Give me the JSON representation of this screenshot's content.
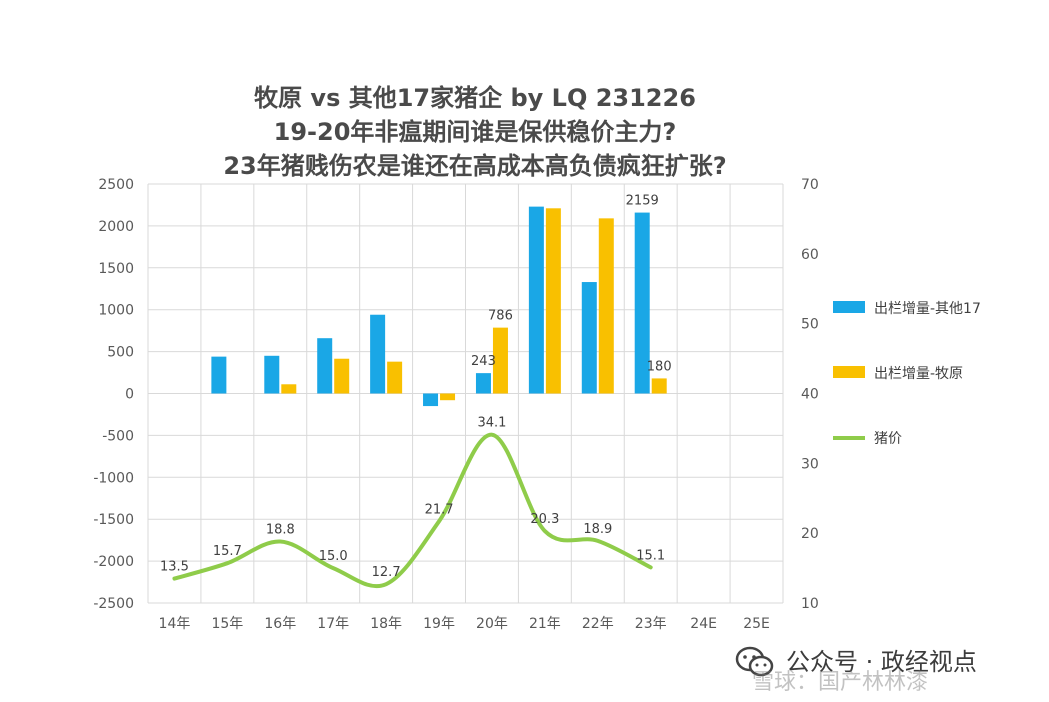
{
  "chart_data": {
    "type": "bar+line",
    "title": [
      "牧原 vs 其他17家猪企 by LQ 231226",
      "19-20年非瘟期间谁是保供稳价主力?",
      "23年猪贱伤农是谁还在高成本高负债疯狂扩张?"
    ],
    "categories": [
      "14年",
      "15年",
      "16年",
      "17年",
      "18年",
      "19年",
      "20年",
      "21年",
      "22年",
      "23年",
      "24E",
      "25E"
    ],
    "y_left": {
      "min": -2500,
      "max": 2500,
      "step": 500,
      "ticks": [
        "2500",
        "2000",
        "1500",
        "1000",
        "500",
        "0",
        "-500",
        "-1000",
        "-1500",
        "-2000",
        "-2500"
      ]
    },
    "y_right": {
      "min": 10,
      "max": 70,
      "step": 10,
      "ticks": [
        "70",
        "60",
        "50",
        "40",
        "30",
        "20",
        "10"
      ]
    },
    "grid": true,
    "legend_position": "right",
    "series": [
      {
        "name": "出栏增量-其他17",
        "type": "bar",
        "axis": "left",
        "color": "#1aa7e6",
        "values": [
          null,
          440,
          450,
          660,
          940,
          -150,
          243,
          2230,
          1330,
          2159,
          null,
          null
        ]
      },
      {
        "name": "出栏增量-牧原",
        "type": "bar",
        "axis": "left",
        "color": "#f9c000",
        "values": [
          null,
          null,
          110,
          415,
          380,
          -80,
          786,
          2210,
          2090,
          180,
          null,
          null
        ]
      },
      {
        "name": "猪价",
        "type": "line",
        "axis": "right",
        "color": "#8fcc4a",
        "values": [
          13.5,
          15.7,
          18.8,
          15.0,
          12.7,
          21.7,
          34.1,
          20.3,
          18.9,
          15.1,
          null,
          null
        ]
      }
    ],
    "bar_labels": [
      {
        "series": 0,
        "index": 6,
        "text": "243"
      },
      {
        "series": 1,
        "index": 6,
        "text": "786"
      },
      {
        "series": 0,
        "index": 9,
        "text": "2159"
      },
      {
        "series": 1,
        "index": 9,
        "text": "180"
      }
    ],
    "line_labels": [
      "13.5",
      "15.7",
      "18.8",
      "15.0",
      "12.7",
      "21.7",
      "34.1",
      "20.3",
      "18.9",
      "15.1"
    ]
  },
  "watermark": {
    "line1": "公众号 · 政经视点",
    "line2": "雪球：国产林林漆"
  }
}
